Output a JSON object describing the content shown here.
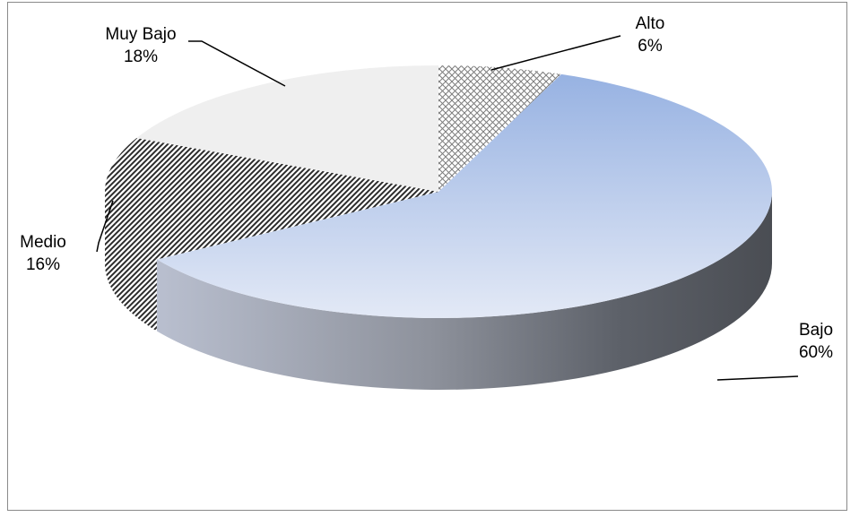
{
  "chart_data": {
    "type": "pie",
    "style": "3d",
    "slices": [
      {
        "name": "Alto",
        "value": 6,
        "percent": "6%",
        "fill": "crosshatch",
        "color": "#ffffff"
      },
      {
        "name": "Bajo",
        "value": 60,
        "percent": "60%",
        "fill": "gradient",
        "color": "#9fb6e2"
      },
      {
        "name": "Medio",
        "value": 16,
        "percent": "16%",
        "fill": "diagonal-stripes",
        "color": "#3a3a3a"
      },
      {
        "name": "Muy Bajo",
        "value": 18,
        "percent": "18%",
        "fill": "solid",
        "color": "#efefef"
      }
    ],
    "legend": "none",
    "data_labels": "outside-with-leader-lines"
  }
}
